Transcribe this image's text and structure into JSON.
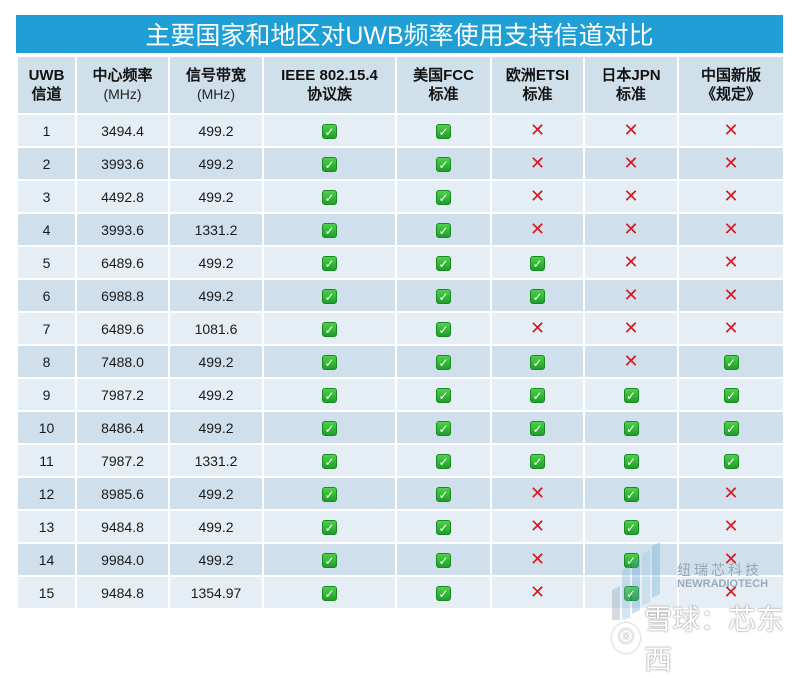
{
  "title": "主要国家和地区对UWB频率使用支持信道对比",
  "headers": [
    {
      "main": "UWB",
      "sub": "信道"
    },
    {
      "main": "中心频率",
      "sub": "(MHz)"
    },
    {
      "main": "信号带宽",
      "sub": "(MHz)"
    },
    {
      "main": "IEEE 802.15.4",
      "sub": "协议族"
    },
    {
      "main": "美国FCC",
      "sub": "标准"
    },
    {
      "main": "欧洲ETSI",
      "sub": "标准"
    },
    {
      "main": "日本JPN",
      "sub": "标准"
    },
    {
      "main": "中国新版",
      "sub": "《规定》"
    }
  ],
  "symbols": {
    "yes": "✓",
    "no": "✕"
  },
  "colors": {
    "title_bg": "#1f9fd6",
    "header_bg": "#d0e0eb",
    "row_light": "#e6eef5",
    "row_dark": "#cfe0ec",
    "check_green": "#2bb033",
    "cross_red": "#d8191f"
  },
  "rows": [
    {
      "channel": "1",
      "center": "3494.4",
      "bandwidth": "499.2",
      "ieee": "yes",
      "fcc": "yes",
      "etsi": "no",
      "jpn": "no",
      "china": "no"
    },
    {
      "channel": "2",
      "center": "3993.6",
      "bandwidth": "499.2",
      "ieee": "yes",
      "fcc": "yes",
      "etsi": "no",
      "jpn": "no",
      "china": "no"
    },
    {
      "channel": "3",
      "center": "4492.8",
      "bandwidth": "499.2",
      "ieee": "yes",
      "fcc": "yes",
      "etsi": "no",
      "jpn": "no",
      "china": "no"
    },
    {
      "channel": "4",
      "center": "3993.6",
      "bandwidth": "1331.2",
      "ieee": "yes",
      "fcc": "yes",
      "etsi": "no",
      "jpn": "no",
      "china": "no"
    },
    {
      "channel": "5",
      "center": "6489.6",
      "bandwidth": "499.2",
      "ieee": "yes",
      "fcc": "yes",
      "etsi": "yes",
      "jpn": "no",
      "china": "no"
    },
    {
      "channel": "6",
      "center": "6988.8",
      "bandwidth": "499.2",
      "ieee": "yes",
      "fcc": "yes",
      "etsi": "yes",
      "jpn": "no",
      "china": "no"
    },
    {
      "channel": "7",
      "center": "6489.6",
      "bandwidth": "1081.6",
      "ieee": "yes",
      "fcc": "yes",
      "etsi": "no",
      "jpn": "no",
      "china": "no"
    },
    {
      "channel": "8",
      "center": "7488.0",
      "bandwidth": "499.2",
      "ieee": "yes",
      "fcc": "yes",
      "etsi": "yes",
      "jpn": "no",
      "china": "yes"
    },
    {
      "channel": "9",
      "center": "7987.2",
      "bandwidth": "499.2",
      "ieee": "yes",
      "fcc": "yes",
      "etsi": "yes",
      "jpn": "yes",
      "china": "yes"
    },
    {
      "channel": "10",
      "center": "8486.4",
      "bandwidth": "499.2",
      "ieee": "yes",
      "fcc": "yes",
      "etsi": "yes",
      "jpn": "yes",
      "china": "yes"
    },
    {
      "channel": "11",
      "center": "7987.2",
      "bandwidth": "1331.2",
      "ieee": "yes",
      "fcc": "yes",
      "etsi": "yes",
      "jpn": "yes",
      "china": "yes"
    },
    {
      "channel": "12",
      "center": "8985.6",
      "bandwidth": "499.2",
      "ieee": "yes",
      "fcc": "yes",
      "etsi": "no",
      "jpn": "yes",
      "china": "no"
    },
    {
      "channel": "13",
      "center": "9484.8",
      "bandwidth": "499.2",
      "ieee": "yes",
      "fcc": "yes",
      "etsi": "no",
      "jpn": "yes",
      "china": "no"
    },
    {
      "channel": "14",
      "center": "9984.0",
      "bandwidth": "499.2",
      "ieee": "yes",
      "fcc": "yes",
      "etsi": "no",
      "jpn": "yes",
      "china": "no"
    },
    {
      "channel": "15",
      "center": "9484.8",
      "bandwidth": "1354.97",
      "ieee": "yes",
      "fcc": "yes",
      "etsi": "no",
      "jpn": "yes",
      "china": "no"
    }
  ],
  "watermark": {
    "company_cn": "纽瑞芯科技",
    "company_en": "NEWRADIOTECH",
    "platform": "雪球：芯东西"
  }
}
